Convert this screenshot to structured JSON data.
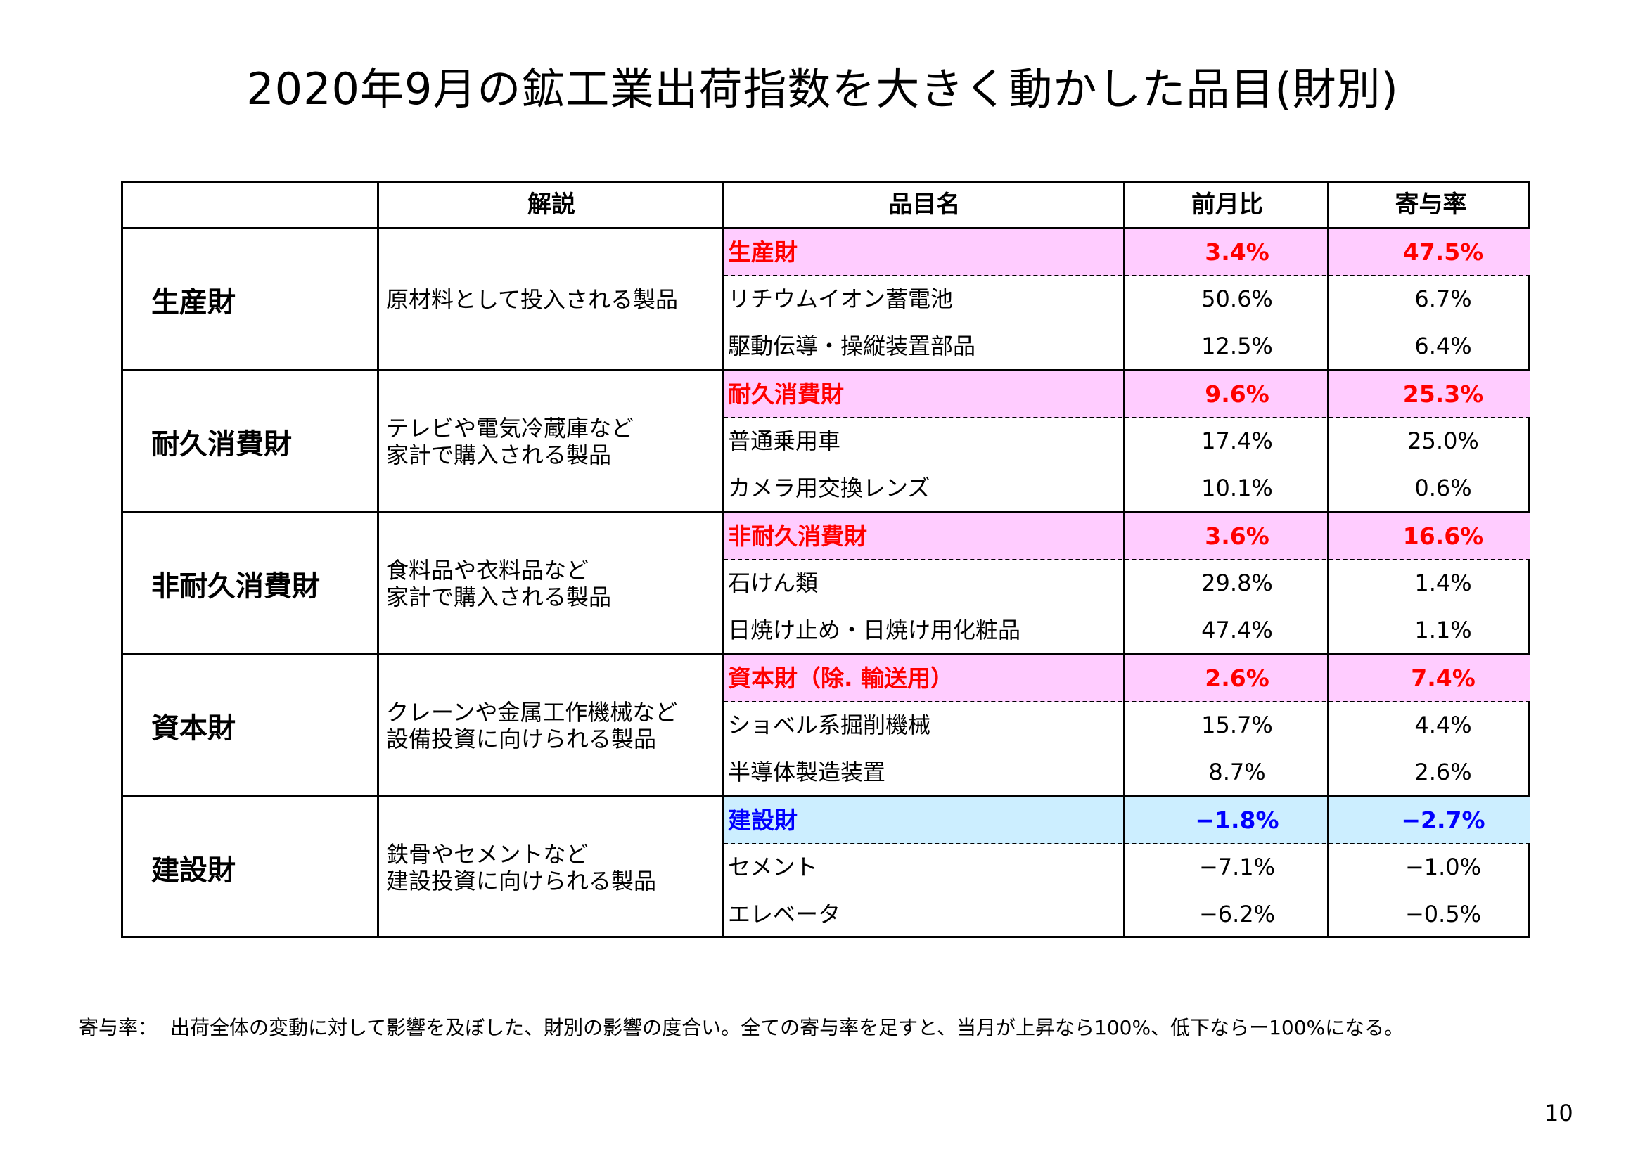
{
  "title": "2020年9月の鉱工業出荷指数を大きく動かした品目(財別)",
  "headers": {
    "blank": "",
    "desc": "解説",
    "item": "品目名",
    "mom": "前月比",
    "contrib": "寄与率"
  },
  "groups": [
    {
      "category": "生産財",
      "desc": [
        "原材料として投入される製品"
      ],
      "rows": [
        {
          "name": "生産財",
          "mom": "3.4%",
          "contrib": "47.5%"
        },
        {
          "name": "リチウムイオン蓄電池",
          "mom": "50.6%",
          "contrib": "6.7%"
        },
        {
          "name": "駆動伝導・操縦装置部品",
          "mom": "12.5%",
          "contrib": "6.4%"
        }
      ]
    },
    {
      "category": "耐久消費財",
      "desc": [
        "テレビや電気冷蔵庫など",
        "家計で購入される製品"
      ],
      "rows": [
        {
          "name": "耐久消費財",
          "mom": "9.6%",
          "contrib": "25.3%"
        },
        {
          "name": "普通乗用車",
          "mom": "17.4%",
          "contrib": "25.0%"
        },
        {
          "name": "カメラ用交換レンズ",
          "mom": "10.1%",
          "contrib": "0.6%"
        }
      ]
    },
    {
      "category": "非耐久消費財",
      "desc": [
        "食料品や衣料品など",
        "家計で購入される製品"
      ],
      "rows": [
        {
          "name": "非耐久消費財",
          "mom": "3.6%",
          "contrib": "16.6%"
        },
        {
          "name": "石けん類",
          "mom": "29.8%",
          "contrib": "1.4%"
        },
        {
          "name": "日焼け止め・日焼け用化粧品",
          "mom": "47.4%",
          "contrib": "1.1%"
        }
      ]
    },
    {
      "category": "資本財",
      "desc": [
        "クレーンや金属工作機械など",
        "設備投資に向けられる製品"
      ],
      "rows": [
        {
          "name": "資本財（除. 輸送用）",
          "mom": "2.6%",
          "contrib": "7.4%"
        },
        {
          "name": "ショベル系掘削機械",
          "mom": "15.7%",
          "contrib": "4.4%"
        },
        {
          "name": "半導体製造装置",
          "mom": "8.7%",
          "contrib": "2.6%"
        }
      ]
    },
    {
      "category": "建設財",
      "desc": [
        "鉄骨やセメントなど",
        "建設投資に向けられる製品"
      ],
      "rows": [
        {
          "name": "建設財",
          "mom": "−1.8%",
          "contrib": "−2.7%"
        },
        {
          "name": "セメント",
          "mom": "−7.1%",
          "contrib": "−1.0%"
        },
        {
          "name": "エレベータ",
          "mom": "−6.2%",
          "contrib": "−0.5%"
        }
      ]
    }
  ],
  "footnote": {
    "label": "寄与率：",
    "text": "出荷全体の変動に対して影響を及ぼした、財別の影響の度合い。全ての寄与率を足すと、当月が上昇なら100%、低下ならー100%になる。"
  },
  "page_number": "10",
  "colors": {
    "summary_positive_bg": "#ffccff",
    "summary_positive_text": "#ff0000",
    "summary_negative_bg": "#cceeff",
    "summary_negative_text": "#0000ff"
  }
}
